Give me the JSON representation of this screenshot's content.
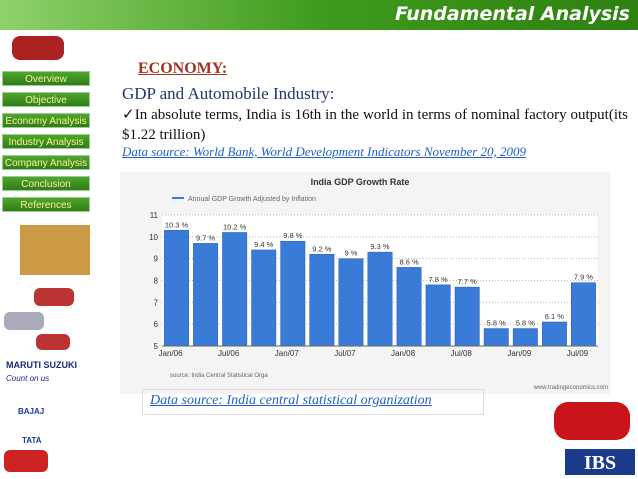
{
  "header": {
    "title": "Fundamental Analysis"
  },
  "nav": [
    "Overview",
    "Objective",
    "Economy Analysis",
    "Industry Analysis",
    "Company Analysis",
    "Conclusion",
    "References"
  ],
  "logos": {
    "maruti": "MARUTI SUZUKI",
    "maruti_tagline": "Count on us",
    "bajaj": "BAJAJ",
    "tata": "TATA",
    "ibs": "IBS"
  },
  "content": {
    "heading": "ECONOMY:",
    "subheading": "GDP and Automobile Industry:",
    "paragraph": "✓In absolute terms, India is 16th in the world in terms of nominal factory output(its $1.22 trillion)",
    "source1": "Data source: World Bank, World Development Indicators November 20, 2009",
    "source2": "Data source: India central statistical organization"
  },
  "chart_data": {
    "type": "bar",
    "title": "India GDP Growth Rate",
    "categories": [
      "Jan/06",
      null,
      "Jul/06",
      null,
      "Jan/07",
      null,
      "Jul/07",
      null,
      "Jan/08",
      null,
      "Jul/08",
      null,
      "Jan/09",
      null,
      "Jul/09"
    ],
    "series": [
      {
        "name": "Annual GDP Growth Adjusted by Inflation",
        "color": "#3b7bd8",
        "values": [
          10.3,
          9.7,
          10.2,
          9.4,
          9.8,
          9.2,
          9,
          9.3,
          8.6,
          7.8,
          7.7,
          5.8,
          5.8,
          6.1,
          7.9
        ],
        "value_labels": [
          "10.3 %",
          "9.7 %",
          "10.2 %",
          "9.4 %",
          "9.8 %",
          "9.2 %",
          "9 %",
          "9.3 %",
          "8.6 %",
          "7.8 %",
          "7.7 %",
          "5.8 %",
          "5.8 %",
          "6.1 %",
          "7.9 %"
        ]
      }
    ],
    "ylim": [
      5,
      11
    ],
    "yticks": [
      5,
      6,
      7,
      8,
      9,
      10,
      11
    ],
    "grid": true,
    "source": "source: India Central Statistical Orga",
    "credit": "www.tradingeconomics.com"
  }
}
